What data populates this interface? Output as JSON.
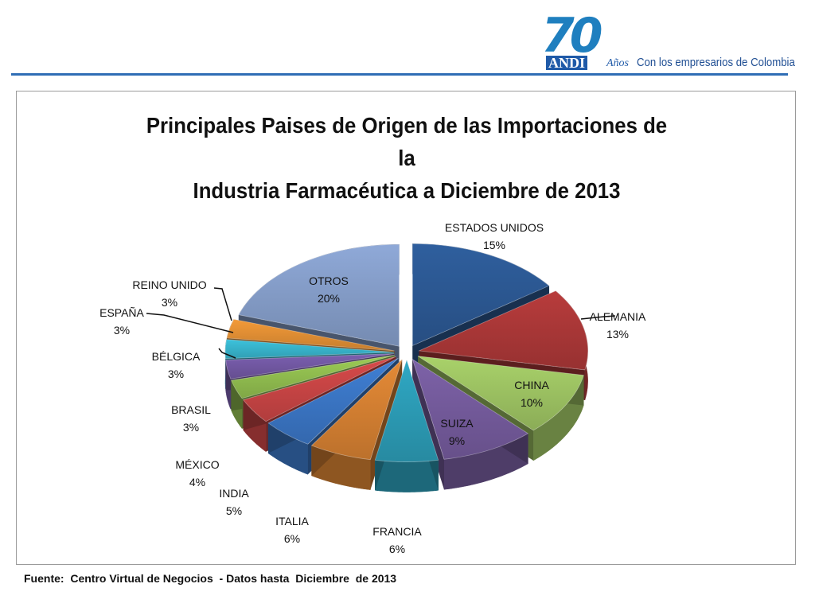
{
  "logo": {
    "number": "70",
    "brand": "ANDI",
    "years": "Años",
    "tagline": "Con los empresarios de Colombia"
  },
  "chart_data": {
    "type": "pie",
    "title_line1": "Principales Paises de Origen de las Importaciones de la",
    "title_line2": "Industria Farmacéutica a Diciembre de 2013",
    "slices": [
      {
        "label": "ESTADOS UNIDOS",
        "value": 15,
        "display": "15%",
        "color": "#2f5f9e"
      },
      {
        "label": "ALEMANIA",
        "value": 13,
        "display": "13%",
        "color": "#b83c3c"
      },
      {
        "label": "CHINA",
        "value": 10,
        "display": "10%",
        "color": "#a9d26a"
      },
      {
        "label": "SUIZA",
        "value": 9,
        "display": "9%",
        "color": "#7d62a8"
      },
      {
        "label": "FRANCIA",
        "value": 6,
        "display": "6%",
        "color": "#2fa8c4"
      },
      {
        "label": "ITALIA",
        "value": 6,
        "display": "6%",
        "color": "#e58a36"
      },
      {
        "label": "INDIA",
        "value": 5,
        "display": "5%",
        "color": "#3f7fd4"
      },
      {
        "label": "MÉXICO",
        "value": 4,
        "display": "4%",
        "color": "#d84a4a"
      },
      {
        "label": "BRASIL",
        "value": 3,
        "display": "3%",
        "color": "#9ccc55"
      },
      {
        "label": "BÉLGICA",
        "value": 3,
        "display": "3%",
        "color": "#7b5fb0"
      },
      {
        "label": "ESPAÑA",
        "value": 3,
        "display": "3%",
        "color": "#3cc2dc"
      },
      {
        "label": "REINO UNIDO",
        "value": 3,
        "display": "3%",
        "color": "#f39a38"
      },
      {
        "label": "OTROS",
        "value": 20,
        "display": "20%",
        "color": "#8fa9d8"
      }
    ]
  },
  "source": "Fuente:  Centro Virtual de Negocios  - Datos hasta  Diciembre  de 2013"
}
